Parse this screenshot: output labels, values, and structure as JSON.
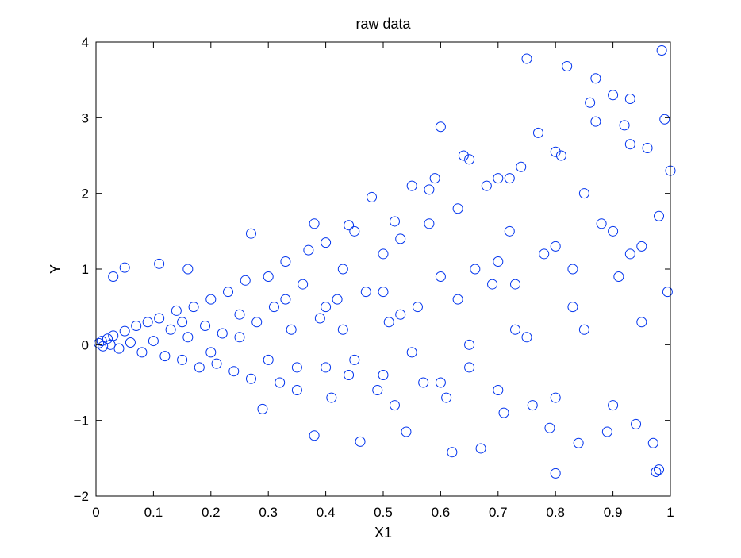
{
  "chart_data": {
    "type": "scatter",
    "title": "raw data",
    "xlabel": "X1",
    "ylabel": "Y",
    "xlim": [
      0,
      1
    ],
    "ylim": [
      -2,
      4
    ],
    "xticks": [
      "0",
      "0.1",
      "0.2",
      "0.3",
      "0.4",
      "0.5",
      "0.6",
      "0.7",
      "0.8",
      "0.9",
      "1"
    ],
    "yticks": [
      "-2",
      "-1",
      "0",
      "1",
      "2",
      "3",
      "4"
    ],
    "grid": false,
    "legend": "none",
    "marker": "o",
    "marker_color": "#0033ee",
    "series": [
      {
        "points": [
          [
            0.005,
            0.02
          ],
          [
            0.01,
            0.05
          ],
          [
            0.012,
            -0.02
          ],
          [
            0.02,
            0.08
          ],
          [
            0.025,
            0.0
          ],
          [
            0.03,
            0.12
          ],
          [
            0.04,
            -0.05
          ],
          [
            0.05,
            0.18
          ],
          [
            0.06,
            0.03
          ],
          [
            0.07,
            0.25
          ],
          [
            0.08,
            -0.1
          ],
          [
            0.09,
            0.3
          ],
          [
            0.1,
            0.05
          ],
          [
            0.11,
            0.35
          ],
          [
            0.12,
            -0.15
          ],
          [
            0.13,
            0.2
          ],
          [
            0.14,
            0.45
          ],
          [
            0.15,
            -0.2
          ],
          [
            0.16,
            0.1
          ],
          [
            0.17,
            0.5
          ],
          [
            0.18,
            -0.3
          ],
          [
            0.19,
            0.25
          ],
          [
            0.2,
            0.6
          ],
          [
            0.21,
            -0.25
          ],
          [
            0.22,
            0.15
          ],
          [
            0.23,
            0.7
          ],
          [
            0.24,
            -0.35
          ],
          [
            0.25,
            0.4
          ],
          [
            0.26,
            0.85
          ],
          [
            0.27,
            -0.45
          ],
          [
            0.28,
            0.3
          ],
          [
            0.29,
            -0.85
          ],
          [
            0.3,
            0.9
          ],
          [
            0.31,
            0.5
          ],
          [
            0.32,
            -0.5
          ],
          [
            0.33,
            1.1
          ],
          [
            0.34,
            0.2
          ],
          [
            0.35,
            -0.6
          ],
          [
            0.36,
            0.8
          ],
          [
            0.37,
            1.25
          ],
          [
            0.38,
            -1.2
          ],
          [
            0.39,
            0.35
          ],
          [
            0.4,
            1.35
          ],
          [
            0.41,
            -0.7
          ],
          [
            0.42,
            0.6
          ],
          [
            0.43,
            1.0
          ],
          [
            0.44,
            -0.4
          ],
          [
            0.45,
            1.5
          ],
          [
            0.46,
            -1.28
          ],
          [
            0.47,
            0.7
          ],
          [
            0.48,
            1.95
          ],
          [
            0.49,
            -0.6
          ],
          [
            0.5,
            1.2
          ],
          [
            0.51,
            0.3
          ],
          [
            0.52,
            -0.8
          ],
          [
            0.53,
            1.4
          ],
          [
            0.54,
            -1.15
          ],
          [
            0.55,
            2.1
          ],
          [
            0.56,
            0.5
          ],
          [
            0.57,
            -0.5
          ],
          [
            0.58,
            1.6
          ],
          [
            0.59,
            2.2
          ],
          [
            0.6,
            2.88
          ],
          [
            0.61,
            -0.7
          ],
          [
            0.62,
            -1.42
          ],
          [
            0.63,
            1.8
          ],
          [
            0.64,
            2.5
          ],
          [
            0.65,
            -0.3
          ],
          [
            0.66,
            1.0
          ],
          [
            0.67,
            -1.37
          ],
          [
            0.68,
            2.1
          ],
          [
            0.69,
            0.8
          ],
          [
            0.7,
            2.2
          ],
          [
            0.71,
            -0.9
          ],
          [
            0.72,
            1.5
          ],
          [
            0.73,
            0.2
          ],
          [
            0.74,
            2.35
          ],
          [
            0.75,
            3.78
          ],
          [
            0.76,
            -0.8
          ],
          [
            0.77,
            2.8
          ],
          [
            0.78,
            1.2
          ],
          [
            0.79,
            -1.1
          ],
          [
            0.8,
            -1.7
          ],
          [
            0.81,
            2.5
          ],
          [
            0.82,
            3.68
          ],
          [
            0.83,
            0.5
          ],
          [
            0.84,
            -1.3
          ],
          [
            0.85,
            2.0
          ],
          [
            0.86,
            3.2
          ],
          [
            0.87,
            3.52
          ],
          [
            0.88,
            1.6
          ],
          [
            0.89,
            -1.15
          ],
          [
            0.9,
            3.3
          ],
          [
            0.91,
            0.9
          ],
          [
            0.92,
            2.9
          ],
          [
            0.93,
            3.25
          ],
          [
            0.94,
            -1.05
          ],
          [
            0.95,
            1.3
          ],
          [
            0.96,
            2.6
          ],
          [
            0.97,
            -1.3
          ],
          [
            0.975,
            -1.68
          ],
          [
            0.98,
            -1.65
          ],
          [
            0.985,
            3.89
          ],
          [
            0.99,
            2.98
          ],
          [
            1.0,
            2.3
          ],
          [
            0.995,
            0.7
          ],
          [
            0.05,
            1.02
          ],
          [
            0.03,
            0.9
          ],
          [
            0.11,
            1.07
          ],
          [
            0.16,
            1.0
          ],
          [
            0.27,
            1.47
          ],
          [
            0.38,
            1.6
          ],
          [
            0.44,
            1.58
          ],
          [
            0.52,
            1.63
          ],
          [
            0.58,
            2.05
          ],
          [
            0.65,
            2.45
          ],
          [
            0.72,
            2.2
          ],
          [
            0.8,
            2.55
          ],
          [
            0.87,
            2.95
          ],
          [
            0.93,
            2.65
          ],
          [
            0.35,
            -0.3
          ],
          [
            0.45,
            -0.2
          ],
          [
            0.55,
            -0.1
          ],
          [
            0.65,
            0.0
          ],
          [
            0.75,
            0.1
          ],
          [
            0.85,
            0.2
          ],
          [
            0.95,
            0.3
          ],
          [
            0.4,
            0.5
          ],
          [
            0.5,
            0.7
          ],
          [
            0.6,
            0.9
          ],
          [
            0.7,
            1.1
          ],
          [
            0.8,
            1.3
          ],
          [
            0.9,
            1.5
          ],
          [
            0.98,
            1.7
          ],
          [
            0.15,
            0.3
          ],
          [
            0.25,
            0.1
          ],
          [
            0.33,
            0.6
          ],
          [
            0.43,
            0.2
          ],
          [
            0.53,
            0.4
          ],
          [
            0.63,
            0.6
          ],
          [
            0.73,
            0.8
          ],
          [
            0.83,
            1.0
          ],
          [
            0.93,
            1.2
          ],
          [
            0.2,
            -0.1
          ],
          [
            0.3,
            -0.2
          ],
          [
            0.4,
            -0.3
          ],
          [
            0.5,
            -0.4
          ],
          [
            0.6,
            -0.5
          ],
          [
            0.7,
            -0.6
          ],
          [
            0.8,
            -0.7
          ],
          [
            0.9,
            -0.8
          ]
        ]
      }
    ]
  }
}
